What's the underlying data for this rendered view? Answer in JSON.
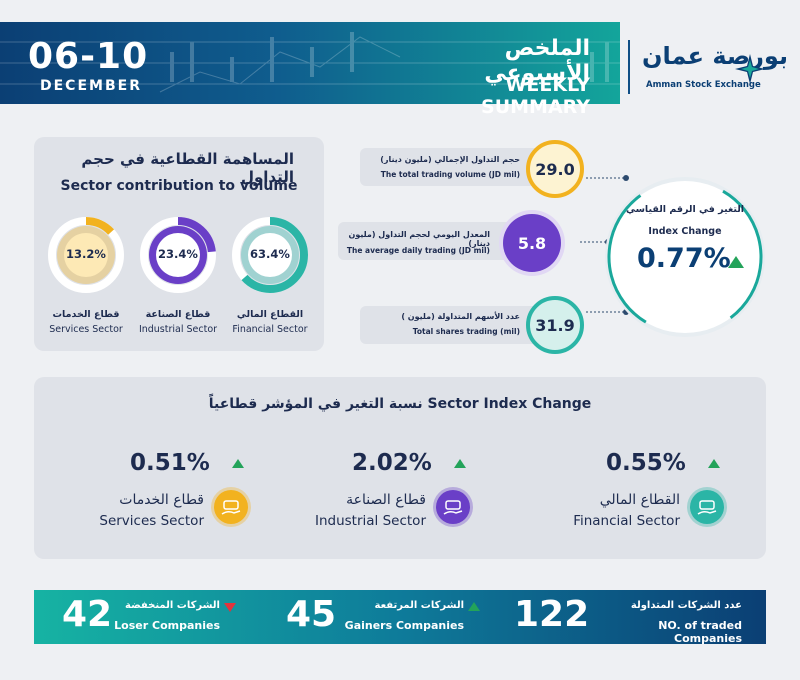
{
  "header": {
    "date_range": "06-10",
    "month": "DECEMBER",
    "title_ar": "الملخص الأسبوعي",
    "title_en": "WEEKLY SUMMARY",
    "logo_ar": "بورصة عمان",
    "logo_en": "Amman Stock Exchange"
  },
  "sector_contribution": {
    "title_ar": "المساهمة القطاعية في حجم التداول",
    "title_en": "Sector contribution to volume",
    "items": [
      {
        "value": "63.4%",
        "percent": 63.4,
        "name_ar": "القطاع المالي",
        "name_en": "Financial Sector",
        "color": "#2bb5a6"
      },
      {
        "value": "23.4%",
        "percent": 23.4,
        "name_ar": "قطاع الصناعة",
        "name_en": "Industrial Sector",
        "color": "#6a3fc7"
      },
      {
        "value": "13.2%",
        "percent": 13.2,
        "name_ar": "قطاع الخدمات",
        "name_en": "Services Sector",
        "color": "#f2b21f"
      }
    ]
  },
  "stats": {
    "total_volume": {
      "label_ar": "حجم التداول الإجمالي (مليون دينار)",
      "label_en": "The total trading volume (JD mil)",
      "value": "29.0",
      "color": "#f2b21f"
    },
    "avg_daily": {
      "label_ar": "المعدل اليومي لحجم التداول (مليون دينار)",
      "label_en": "The average daily trading (JD mil)",
      "value": "5.8",
      "color": "#6a3fc7"
    },
    "total_shares": {
      "label_ar": "عدد الأسهم المتداولة (مليون )",
      "label_en": "Total shares trading (mil)",
      "value": "31.9",
      "color": "#2bb5a6"
    }
  },
  "index_change": {
    "label_ar": "التغير في الرقم القياسي",
    "label_en": "Index Change",
    "value": "0.77%",
    "direction": "up"
  },
  "sector_index_change": {
    "title": "نسبة التغير في المؤشر قطاعياً  Sector Index Change",
    "items": [
      {
        "value": "0.55%",
        "name_ar": "القطاع المالي",
        "name_en": "Financial Sector",
        "icon": "money-hand-icon",
        "color": "#2bb5a6",
        "direction": "up"
      },
      {
        "value": "2.02%",
        "name_ar": "قطاع الصناعة",
        "name_en": "Industrial Sector",
        "icon": "gear-hand-icon",
        "color": "#6a3fc7",
        "direction": "up"
      },
      {
        "value": "0.51%",
        "name_ar": "قطاع الخدمات",
        "name_en": "Services Sector",
        "icon": "lightbulb-hand-icon",
        "color": "#f2b21f",
        "direction": "up"
      }
    ]
  },
  "footer": {
    "traded": {
      "value": "122",
      "label_ar": "عدد الشركات المتداولة",
      "label_en": "NO. of traded Companies"
    },
    "gainers": {
      "value": "45",
      "label_ar": "الشركات المرتفعة",
      "label_en": "Gainers Companies",
      "color": "#23a35a"
    },
    "losers": {
      "value": "42",
      "label_ar": "الشركات المنخفضة",
      "label_en": "Loser Companies",
      "color": "#e0343c"
    }
  }
}
